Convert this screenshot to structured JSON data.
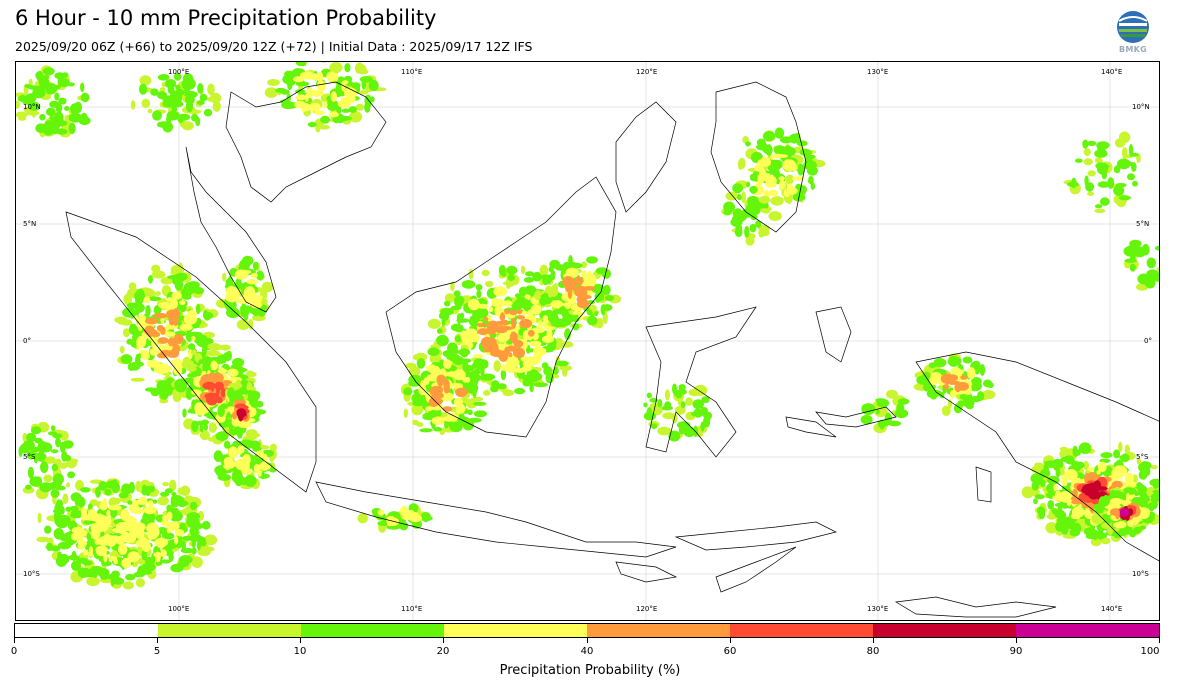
{
  "header": {
    "title": "6 Hour - 10 mm Precipitation Probability",
    "subtitle": "2025/09/20 06Z (+66) to 2025/09/20 12Z (+72) | Initial Data : 2025/09/17 12Z IFS",
    "logo_text": "BMKG"
  },
  "map": {
    "lon_labels": [
      "100°E",
      "110°E",
      "120°E",
      "130°E",
      "140°E"
    ],
    "lat_labels": [
      "10°N",
      "5°N",
      "0°",
      "5°S",
      "10°S"
    ],
    "coastline_color": "#000000",
    "gridline_color": "#dddddd"
  },
  "colorbar": {
    "title": "Precipitation Probability (%)",
    "tick_labels": [
      "0",
      "5",
      "10",
      "20",
      "40",
      "60",
      "80",
      "90",
      "100"
    ],
    "colors": [
      "#ffffff",
      "#c8f52d",
      "#64f50a",
      "#ffff5a",
      "#ff9b3c",
      "#ff4b32",
      "#c8002d",
      "#cd0096"
    ]
  }
}
